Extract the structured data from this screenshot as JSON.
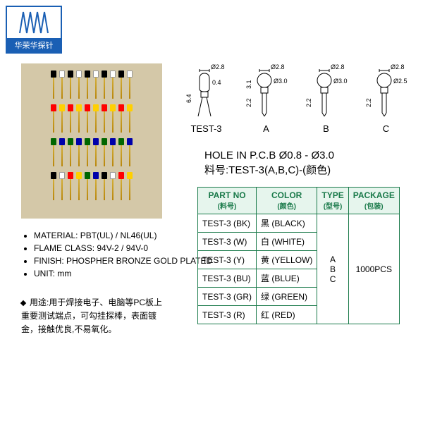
{
  "logo": {
    "text": "华荣华探针"
  },
  "photo": {
    "rows": [
      [
        "#000",
        "#fff",
        "#000",
        "#fff",
        "#000",
        "#fff",
        "#000",
        "#fff",
        "#000",
        "#fff"
      ],
      [
        "#f00",
        "#ffd000",
        "#f00",
        "#ffd000",
        "#f00",
        "#ffd000",
        "#f00",
        "#ffd000",
        "#f00",
        "#ffd000"
      ],
      [
        "#060",
        "#00a",
        "#060",
        "#00a",
        "#060",
        "#00a",
        "#060",
        "#00a",
        "#060",
        "#00a"
      ],
      [
        "#000",
        "#fff",
        "#f00",
        "#ffd000",
        "#060",
        "#00a",
        "#000",
        "#fff",
        "#f00",
        "#ffd000"
      ]
    ]
  },
  "bullets": [
    "MATERIAL: PBT(UL) / NL46(UL)",
    "FLAME CLASS: 94V-2 / 94V-0",
    "FINISH: PHOSPHER BRONZE GOLD PLATED",
    "UNIT: mm"
  ],
  "use": {
    "label": "用途:",
    "text": "用于焊接电子、电脑等PC板上重要测试端点，可勾挂探棒，表面镀金，接触优良,不易氧化。"
  },
  "diagrams": [
    {
      "name": "TEST-3",
      "top": "Ø2.8",
      "side": "0.4",
      "h": "6.4"
    },
    {
      "name": "A",
      "top": "Ø2.8",
      "side": "Ø3.0",
      "h1": "3.1",
      "h2": "2.2"
    },
    {
      "name": "B",
      "top": "Ø2.8",
      "side": "Ø3.0",
      "h2": "2.2"
    },
    {
      "name": "C",
      "top": "Ø2.8",
      "side": "Ø2.5",
      "h2": "2.2"
    }
  ],
  "hole": {
    "line1": "HOLE IN P.C.B Ø0.8 - Ø3.0",
    "line2": "料号:TEST-3(A,B,C)-(颜色)"
  },
  "table": {
    "headers": [
      {
        "en": "PART NO",
        "cn": "(料号)"
      },
      {
        "en": "COLOR",
        "cn": "(颜色)"
      },
      {
        "en": "TYPE",
        "cn": "(型号)"
      },
      {
        "en": "PACKAGE",
        "cn": "(包装)"
      }
    ],
    "rows": [
      {
        "part": "TEST-3 (BK)",
        "color": "黑 (BLACK)"
      },
      {
        "part": "TEST-3 (W)",
        "color": "白 (WHITE)"
      },
      {
        "part": "TEST-3 (Y)",
        "color": "黄 (YELLOW)"
      },
      {
        "part": "TEST-3 (BU)",
        "color": "蓝 (BLUE)"
      },
      {
        "part": "TEST-3 (GR)",
        "color": "绿 (GREEN)"
      },
      {
        "part": "TEST-3 (R)",
        "color": "红 (RED)"
      }
    ],
    "type": "A\nB\nC",
    "package": "1000PCS"
  },
  "colors": {
    "border": "#1a7a4a",
    "logo": "#1a5fb4"
  }
}
